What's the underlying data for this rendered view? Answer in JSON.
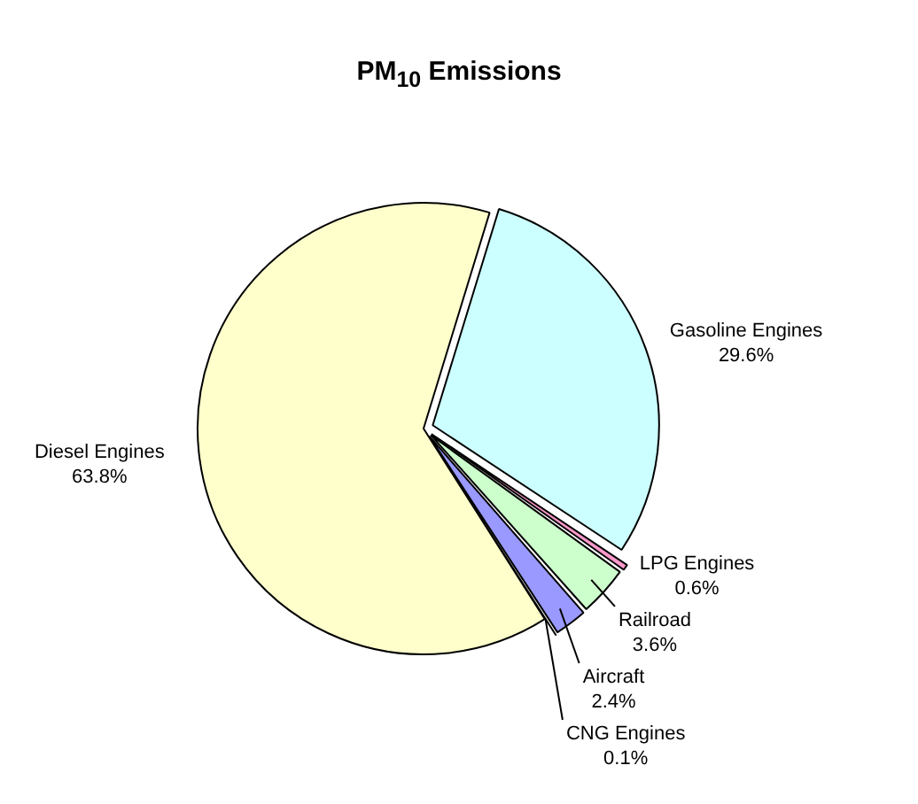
{
  "chart_data": {
    "type": "pie",
    "title": "PM$_{10}$ Emissions",
    "categories": [
      "Gasoline Engines",
      "LPG Engines",
      "Railroad",
      "Aircraft",
      "CNG Engines",
      "Diesel Engines"
    ],
    "values": [
      29.6,
      0.6,
      3.6,
      2.4,
      0.1,
      63.8
    ],
    "colors": [
      "#ccffff",
      "#ff99cc",
      "#ccffcc",
      "#9999ff",
      "#ffffff",
      "#ffffcc"
    ],
    "value_labels": [
      "29.6%",
      "0.6%",
      "3.6%",
      "2.4%",
      "0.1%",
      "63.8%"
    ],
    "legend": false
  }
}
